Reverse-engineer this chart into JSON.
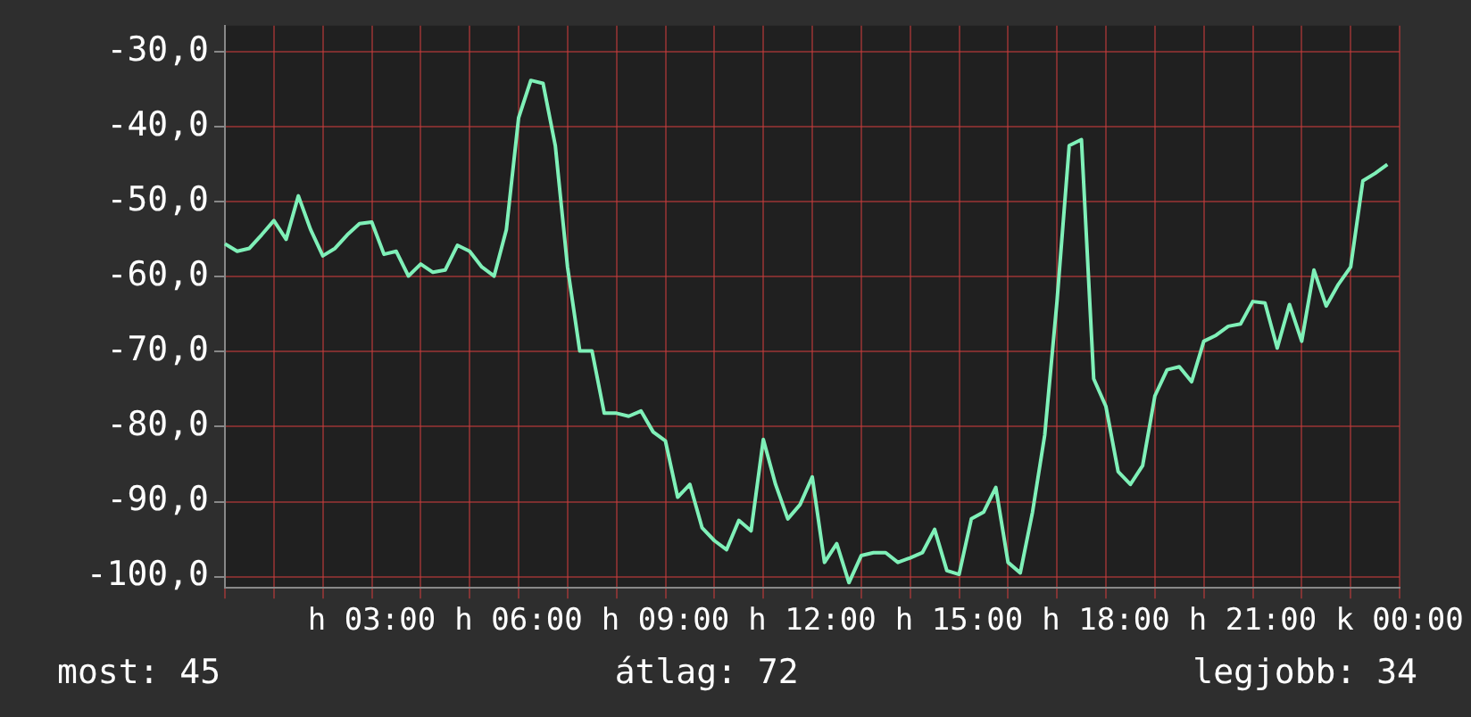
{
  "chart_data": {
    "type": "line",
    "categories": [
      null,
      null,
      null,
      null,
      null,
      null,
      null,
      null,
      null,
      null,
      null,
      null,
      "h 03:00",
      null,
      null,
      null,
      null,
      null,
      null,
      null,
      null,
      null,
      null,
      null,
      "h 06:00",
      null,
      null,
      null,
      null,
      null,
      null,
      null,
      null,
      null,
      null,
      null,
      "h 09:00",
      null,
      null,
      null,
      null,
      null,
      null,
      null,
      null,
      null,
      null,
      null,
      "h 12:00",
      null,
      null,
      null,
      null,
      null,
      null,
      null,
      null,
      null,
      null,
      null,
      "h 15:00",
      null,
      null,
      null,
      null,
      null,
      null,
      null,
      null,
      null,
      null,
      null,
      "h 18:00",
      null,
      null,
      null,
      null,
      null,
      null,
      null,
      null,
      null,
      null,
      null,
      "h 21:00",
      null,
      null,
      null,
      null,
      null,
      null,
      null,
      null,
      null,
      null,
      null,
      "k 00:00"
    ],
    "series": [
      {
        "color": "#7ff0b8",
        "values": [
          -55.6,
          -56.6,
          -56.2,
          -54.4,
          -52.5,
          -55,
          -49.2,
          -53.7,
          -57.2,
          -56.2,
          -54.4,
          -52.9,
          -52.7,
          -57,
          -56.6,
          -59.9,
          -58.3,
          -59.4,
          -59.1,
          -55.8,
          -56.6,
          -58.7,
          -59.9,
          -53.7,
          -38.8,
          -33.8,
          -34.2,
          -42.5,
          -58.7,
          -69.9,
          -69.9,
          -78.2,
          -78.2,
          -78.6,
          -77.9,
          -80.7,
          -81.9,
          -89.4,
          -87.7,
          -93.5,
          -95.2,
          -96.4,
          -92.5,
          -93.9,
          -81.7,
          -87.7,
          -92.3,
          -90.4,
          -86.7,
          -98.1,
          -95.6,
          -100.8,
          -97.2,
          -96.8,
          -96.8,
          -98.1,
          -97.5,
          -96.8,
          -93.7,
          -99.2,
          -99.7,
          -92.3,
          -91.4,
          -88.1,
          -98.1,
          -99.5,
          -91.4,
          -81.1,
          -63.3,
          -42.5,
          -41.7,
          -73.6,
          -77.3,
          -86,
          -87.7,
          -85.2,
          -75.9,
          -72.4,
          -72,
          -74,
          -68.6,
          -67.8,
          -66.6,
          -66.3,
          -63.3,
          -63.5,
          -69.5,
          -63.7,
          -68.6,
          -59.1,
          -63.9,
          -61,
          -58.7,
          -47.2,
          -46.2,
          -45,
          null
        ]
      }
    ],
    "ylim": [
      -101.5,
      -26.5
    ],
    "yticks": [
      {
        "value": -100,
        "label": "-100,0"
      },
      {
        "value": -90,
        "label": "-90,0"
      },
      {
        "value": -80,
        "label": "-80,0"
      },
      {
        "value": -70,
        "label": "-70,0"
      },
      {
        "value": -60,
        "label": "-60,0"
      },
      {
        "value": -50,
        "label": "-50,0"
      },
      {
        "value": -40,
        "label": "-40,0"
      },
      {
        "value": -30,
        "label": "-30,0"
      }
    ],
    "grid": true,
    "legend": false,
    "marker": "none",
    "line_style": "solid",
    "annotations": [
      "most: 45",
      "átlag: 72",
      "legjobb: 34"
    ]
  }
}
